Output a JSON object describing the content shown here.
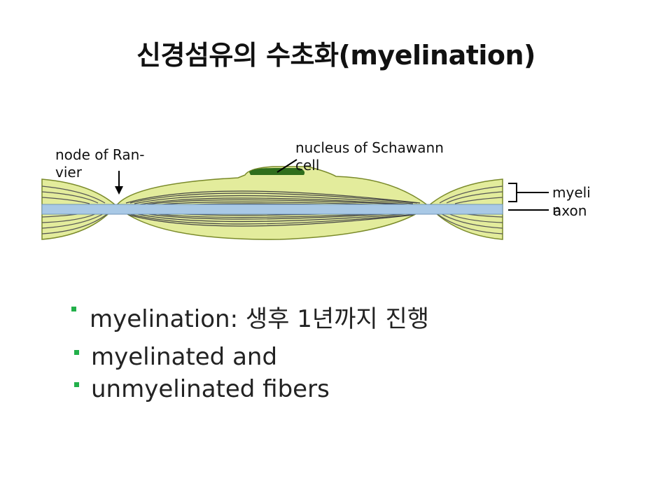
{
  "title": "신경섬유의 수초화(myelination)",
  "diagram": {
    "node_label_line1": "node of Ran-",
    "node_label_line2": "vier",
    "nucleus_label_line1": "nucleus of Schawann",
    "nucleus_label_line2": "cell",
    "myelin_label_line1": "myeli",
    "myelin_label_line2": "n",
    "axon_label": "axon",
    "colors": {
      "myelin_fill": "#e3ec9c",
      "myelin_outline": "#7a8a2a",
      "axon": "#a9c9e6",
      "nucleus": "#2f6e1c"
    }
  },
  "bullets": [
    "myelination: 생후 1년까지 진행",
    "myelinated and",
    "unmyelinated fibers"
  ],
  "colors": {
    "bullet": "#22b04a"
  }
}
